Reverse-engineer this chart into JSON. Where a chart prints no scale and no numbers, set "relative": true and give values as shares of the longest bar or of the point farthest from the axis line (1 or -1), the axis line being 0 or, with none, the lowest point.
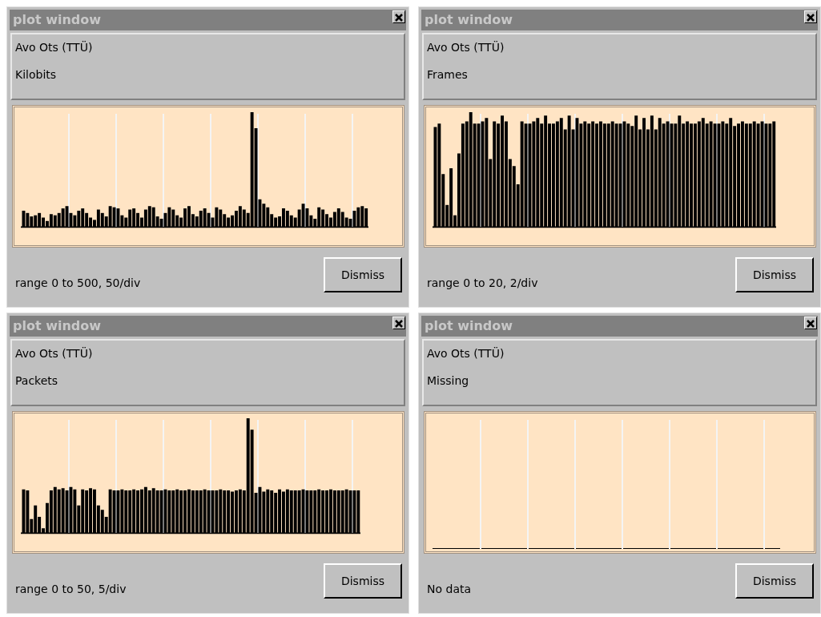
{
  "chart_data": [
    {
      "type": "bar",
      "title": "Avo Ots (TTÜ)",
      "subtitle": "Kilobits",
      "annotations": [
        "plot window",
        "range 0 to 500,  50/div",
        "Dismiss"
      ],
      "relative": true,
      "grid": "x",
      "legend": false,
      "color": "#000000",
      "categories": [
        null,
        null,
        null,
        null,
        null,
        null,
        null,
        null,
        null,
        null,
        null,
        null,
        null,
        null,
        null,
        null,
        null,
        null,
        null,
        null,
        null,
        null,
        null,
        null,
        null,
        null,
        null,
        null,
        null,
        null,
        null,
        null,
        null,
        null,
        null,
        null,
        null,
        null,
        null,
        null,
        null,
        null,
        null,
        null,
        null,
        null,
        null,
        null,
        null,
        null,
        null,
        null,
        null,
        null,
        null,
        null,
        null,
        null,
        null,
        null,
        null,
        null,
        null,
        null,
        null,
        null,
        null,
        null,
        null,
        null,
        null,
        null,
        null,
        null,
        null,
        null,
        null,
        null,
        null,
        null,
        null,
        null,
        null,
        null,
        null,
        null,
        null,
        null
      ],
      "values": [
        0.14,
        0.12,
        0.09,
        0.1,
        0.12,
        0.08,
        0.05,
        0.11,
        0.1,
        0.12,
        0.16,
        0.18,
        0.12,
        0.1,
        0.14,
        0.16,
        0.12,
        0.08,
        0.06,
        0.15,
        0.12,
        0.09,
        0.18,
        0.17,
        0.16,
        0.1,
        0.08,
        0.15,
        0.16,
        0.12,
        0.08,
        0.15,
        0.18,
        0.17,
        0.09,
        0.07,
        0.12,
        0.17,
        0.15,
        0.1,
        0.08,
        0.16,
        0.18,
        0.11,
        0.09,
        0.14,
        0.16,
        0.12,
        0.08,
        0.17,
        0.15,
        0.11,
        0.08,
        0.1,
        0.14,
        0.18,
        0.15,
        0.12,
        1.0,
        0.86,
        0.24,
        0.2,
        0.17,
        0.11,
        0.08,
        0.09,
        0.16,
        0.14,
        0.1,
        0.08,
        0.15,
        0.2,
        0.16,
        0.1,
        0.07,
        0.17,
        0.15,
        0.11,
        0.08,
        0.13,
        0.16,
        0.13,
        0.08,
        0.07,
        0.14,
        0.17,
        0.18,
        0.16
      ]
    },
    {
      "type": "bar",
      "title": "Avo Ots (TTÜ)",
      "subtitle": "Frames",
      "annotations": [
        "plot window",
        "range 0 to 20,  2/div",
        "Dismiss"
      ],
      "relative": true,
      "grid": "x",
      "legend": false,
      "color": "#000000",
      "categories": [
        null,
        null,
        null,
        null,
        null,
        null,
        null,
        null,
        null,
        null,
        null,
        null,
        null,
        null,
        null,
        null,
        null,
        null,
        null,
        null,
        null,
        null,
        null,
        null,
        null,
        null,
        null,
        null,
        null,
        null,
        null,
        null,
        null,
        null,
        null,
        null,
        null,
        null,
        null,
        null,
        null,
        null,
        null,
        null,
        null,
        null,
        null,
        null,
        null,
        null,
        null,
        null,
        null,
        null,
        null,
        null,
        null,
        null,
        null,
        null,
        null,
        null,
        null,
        null,
        null,
        null,
        null,
        null,
        null,
        null,
        null,
        null,
        null,
        null,
        null,
        null,
        null,
        null,
        null,
        null,
        null,
        null,
        null,
        null,
        null,
        null,
        null
      ],
      "values": [
        0.87,
        0.9,
        0.46,
        0.19,
        0.51,
        0.1,
        0.64,
        0.9,
        0.92,
        1.0,
        0.9,
        0.9,
        0.92,
        0.95,
        0.59,
        0.92,
        0.9,
        0.97,
        0.92,
        0.59,
        0.53,
        0.37,
        0.92,
        0.9,
        0.9,
        0.92,
        0.95,
        0.9,
        0.97,
        0.9,
        0.9,
        0.92,
        0.95,
        0.85,
        0.97,
        0.85,
        0.95,
        0.9,
        0.92,
        0.9,
        0.92,
        0.9,
        0.92,
        0.9,
        0.9,
        0.92,
        0.9,
        0.9,
        0.92,
        0.9,
        0.88,
        0.97,
        0.85,
        0.95,
        0.85,
        0.97,
        0.85,
        0.95,
        0.9,
        0.92,
        0.9,
        0.9,
        0.97,
        0.9,
        0.92,
        0.9,
        0.9,
        0.92,
        0.95,
        0.9,
        0.92,
        0.9,
        0.9,
        0.92,
        0.9,
        0.95,
        0.88,
        0.9,
        0.92,
        0.9,
        0.9,
        0.92,
        0.9,
        0.92,
        0.9,
        0.9,
        0.92
      ]
    },
    {
      "type": "bar",
      "title": "Avo Ots (TTÜ)",
      "subtitle": "Packets",
      "annotations": [
        "plot window",
        "range 0 to 50,  5/div",
        "Dismiss"
      ],
      "relative": true,
      "grid": "x",
      "legend": false,
      "color": "#000000",
      "categories": [
        null,
        null,
        null,
        null,
        null,
        null,
        null,
        null,
        null,
        null,
        null,
        null,
        null,
        null,
        null,
        null,
        null,
        null,
        null,
        null,
        null,
        null,
        null,
        null,
        null,
        null,
        null,
        null,
        null,
        null,
        null,
        null,
        null,
        null,
        null,
        null,
        null,
        null,
        null,
        null,
        null,
        null,
        null,
        null,
        null,
        null,
        null,
        null,
        null,
        null,
        null,
        null,
        null,
        null,
        null,
        null,
        null,
        null,
        null,
        null,
        null,
        null,
        null,
        null,
        null,
        null,
        null,
        null,
        null,
        null,
        null,
        null,
        null,
        null,
        null,
        null,
        null,
        null,
        null,
        null,
        null,
        null,
        null,
        null,
        null,
        null
      ],
      "values": [
        0.38,
        0.37,
        0.12,
        0.24,
        0.14,
        0.04,
        0.26,
        0.37,
        0.4,
        0.38,
        0.39,
        0.37,
        0.4,
        0.38,
        0.24,
        0.38,
        0.37,
        0.39,
        0.38,
        0.24,
        0.2,
        0.14,
        0.38,
        0.37,
        0.37,
        0.38,
        0.37,
        0.37,
        0.38,
        0.37,
        0.38,
        0.4,
        0.37,
        0.39,
        0.37,
        0.37,
        0.38,
        0.37,
        0.37,
        0.38,
        0.37,
        0.37,
        0.38,
        0.37,
        0.37,
        0.37,
        0.38,
        0.37,
        0.37,
        0.37,
        0.38,
        0.37,
        0.37,
        0.36,
        0.37,
        0.38,
        0.37,
        1.0,
        0.9,
        0.35,
        0.4,
        0.36,
        0.38,
        0.37,
        0.35,
        0.38,
        0.36,
        0.38,
        0.37,
        0.37,
        0.37,
        0.38,
        0.37,
        0.37,
        0.37,
        0.38,
        0.37,
        0.37,
        0.38,
        0.37,
        0.37,
        0.37,
        0.38,
        0.37,
        0.37,
        0.37
      ]
    },
    {
      "type": "other",
      "title": "Avo Ots (TTÜ)",
      "subtitle": "Missing",
      "annotations": [
        "plot window",
        "No data",
        "Dismiss"
      ]
    }
  ]
}
